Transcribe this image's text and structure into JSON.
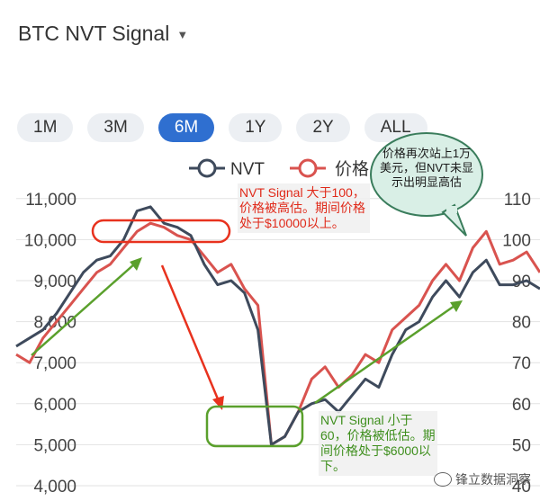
{
  "header": {
    "title": "BTC NVT Signal",
    "caret_icon": "chevron-down-icon"
  },
  "ranges": [
    {
      "label": "1M",
      "active": false
    },
    {
      "label": "3M",
      "active": false
    },
    {
      "label": "6M",
      "active": true
    },
    {
      "label": "1Y",
      "active": false
    },
    {
      "label": "2Y",
      "active": false
    },
    {
      "label": "ALL",
      "active": false
    }
  ],
  "colors": {
    "nvt": "#3e4a5c",
    "price": "#d9534f",
    "active_range": "#2f6fd0",
    "annotation_red": "#e8321e",
    "annotation_green": "#5aa02c"
  },
  "annotations": {
    "red_note": "NVT Signal 大于100，价格被高估。期间价格处于$10000以上。",
    "green_note": "NVT Signal 小于60，价格被低估。期间价格处于$6000以下。",
    "bubble": "价格再次站上1万美元，但NVT未显示出明显高估"
  },
  "watermark": "锋立数据洞察",
  "chart_data": {
    "type": "line",
    "legend": [
      "NVT",
      "价格"
    ],
    "legend_position": "top",
    "grid": true,
    "left_axis": {
      "ticks": [
        "4,000",
        "5,000",
        "6,000",
        "7,000",
        "8,000",
        "9,000",
        "10,000",
        "11,000"
      ],
      "range": [
        4000,
        11500
      ]
    },
    "right_axis": {
      "ticks": [
        "40",
        "50",
        "60",
        "70",
        "80",
        "90",
        "100",
        "110"
      ],
      "range": [
        40,
        115
      ]
    },
    "series": [
      {
        "name": "价格",
        "axis": "left",
        "values": [
          7200,
          7000,
          7600,
          8000,
          8400,
          8800,
          9200,
          9400,
          9800,
          10200,
          10400,
          10300,
          10100,
          10000,
          9600,
          9200,
          9400,
          8800,
          8400,
          5000,
          5200,
          5800,
          6600,
          6900,
          6400,
          6700,
          7200,
          7000,
          7800,
          8100,
          8400,
          9000,
          9400,
          9000,
          9800,
          10200,
          9400,
          9500,
          9700,
          9200
        ]
      },
      {
        "name": "NVT",
        "axis": "right",
        "values": [
          74,
          76,
          78,
          82,
          87,
          92,
          95,
          96,
          100,
          107,
          108,
          104,
          103,
          101,
          94,
          89,
          90,
          87,
          78,
          50,
          52,
          58,
          60,
          61,
          58,
          62,
          66,
          64,
          72,
          78,
          80,
          86,
          90,
          86,
          92,
          95,
          89,
          89,
          90,
          88
        ]
      }
    ]
  }
}
